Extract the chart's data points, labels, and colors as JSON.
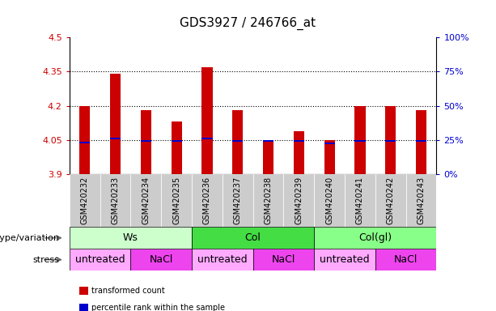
{
  "title": "GDS3927 / 246766_at",
  "samples": [
    "GSM420232",
    "GSM420233",
    "GSM420234",
    "GSM420235",
    "GSM420236",
    "GSM420237",
    "GSM420238",
    "GSM420239",
    "GSM420240",
    "GSM420241",
    "GSM420242",
    "GSM420243"
  ],
  "bar_tops": [
    4.2,
    4.34,
    4.18,
    4.13,
    4.37,
    4.18,
    4.05,
    4.09,
    4.05,
    4.2,
    4.2,
    4.18
  ],
  "bar_base": 3.9,
  "blue_marks": [
    4.04,
    4.055,
    4.045,
    4.045,
    4.055,
    4.045,
    4.045,
    4.045,
    4.035,
    4.045,
    4.045,
    4.045
  ],
  "ylim": [
    3.9,
    4.5
  ],
  "yticks": [
    3.9,
    4.05,
    4.2,
    4.35,
    4.5
  ],
  "ytick_labels": [
    "3.9",
    "4.05",
    "4.2",
    "4.35",
    "4.5"
  ],
  "right_yticks_pct": [
    0,
    25,
    50,
    75,
    100
  ],
  "right_ytick_vals": [
    3.9,
    4.05,
    4.2,
    4.35,
    4.5
  ],
  "bar_color": "#cc0000",
  "blue_color": "#0000cc",
  "bg_color": "#ffffff",
  "plot_bg": "#ffffff",
  "sample_bg": "#cccccc",
  "genotype_groups": [
    {
      "label": "Ws",
      "start": 0,
      "end": 3,
      "color": "#ccffcc"
    },
    {
      "label": "Col",
      "start": 4,
      "end": 7,
      "color": "#44dd44"
    },
    {
      "label": "Col(gl)",
      "start": 8,
      "end": 11,
      "color": "#88ff88"
    }
  ],
  "stress_groups": [
    {
      "label": "untreated",
      "start": 0,
      "end": 1,
      "color": "#ffaaff"
    },
    {
      "label": "NaCl",
      "start": 2,
      "end": 3,
      "color": "#ee44ee"
    },
    {
      "label": "untreated",
      "start": 4,
      "end": 5,
      "color": "#ffaaff"
    },
    {
      "label": "NaCl",
      "start": 6,
      "end": 7,
      "color": "#ee44ee"
    },
    {
      "label": "untreated",
      "start": 8,
      "end": 9,
      "color": "#ffaaff"
    },
    {
      "label": "NaCl",
      "start": 10,
      "end": 11,
      "color": "#ee44ee"
    }
  ],
  "legend_items": [
    {
      "label": "transformed count",
      "color": "#cc0000"
    },
    {
      "label": "percentile rank within the sample",
      "color": "#0000cc"
    }
  ],
  "dotted_lines": [
    4.05,
    4.2,
    4.35
  ],
  "left_axis_color": "#cc0000",
  "right_axis_color": "#0000cc",
  "title_fontsize": 11,
  "tick_fontsize": 8,
  "sample_fontsize": 7,
  "label_fontsize": 9,
  "row_label_fontsize": 8,
  "genotype_label": "genotype/variation",
  "stress_label": "stress",
  "bar_width": 0.35
}
